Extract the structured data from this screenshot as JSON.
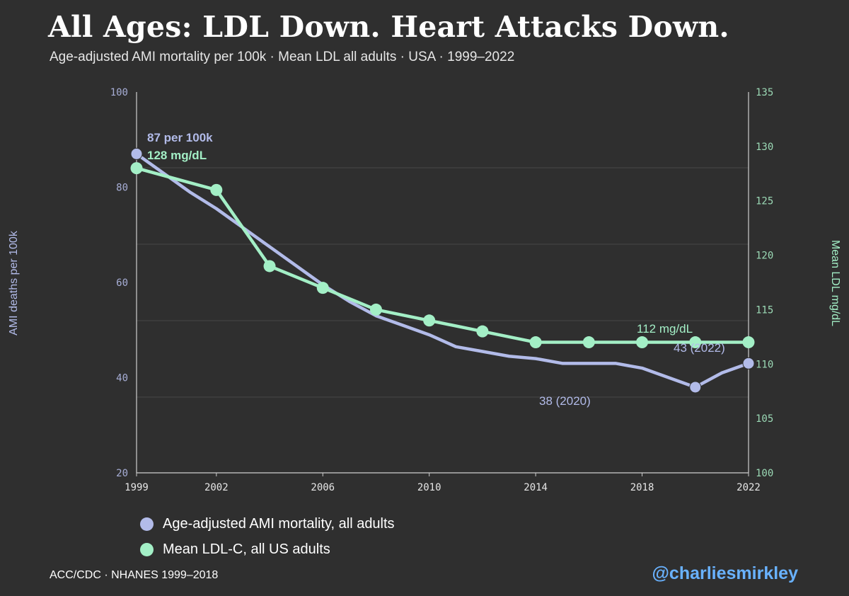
{
  "title": "All Ages: LDL Down. Heart Attacks Down.",
  "subtitle": "Age-adjusted AMI mortality per 100k · Mean LDL all adults · USA · 1999–2022",
  "colors": {
    "background": "#2f2f2f",
    "mortality": "#b2bbe9",
    "ldl": "#a3efc6",
    "grid": "#474747",
    "handle": "#69b2ff"
  },
  "chart_data": {
    "type": "line",
    "title": "All Ages: LDL Down. Heart Attacks Down.",
    "xlabel": "",
    "x_ticks": [
      "1999",
      "2002",
      "2006",
      "2010",
      "2014",
      "2018",
      "2022"
    ],
    "xlim": [
      1999,
      2022
    ],
    "left_axis": {
      "label": "AMI deaths per 100k",
      "ylim": [
        20,
        100
      ],
      "ticks": [
        "20",
        "40",
        "60",
        "80",
        "100"
      ]
    },
    "right_axis": {
      "label": "Mean LDL mg/dL",
      "ylim": [
        100,
        135
      ],
      "ticks": [
        "100",
        "105",
        "110",
        "115",
        "120",
        "125",
        "130",
        "135"
      ]
    },
    "series": [
      {
        "name": "Age-adjusted AMI mortality, all adults",
        "axis": "left",
        "x": [
          1999,
          2000,
          2001,
          2002,
          2003,
          2004,
          2005,
          2006,
          2007,
          2008,
          2009,
          2010,
          2011,
          2012,
          2013,
          2014,
          2015,
          2016,
          2017,
          2018,
          2019,
          2020,
          2021,
          2022
        ],
        "y": [
          87,
          83,
          79,
          75.5,
          71.5,
          67.5,
          63.5,
          59.5,
          56,
          53,
          51,
          49,
          46.5,
          45.5,
          44.5,
          44,
          43,
          43,
          43,
          42,
          40,
          38,
          41,
          43
        ],
        "markers": [
          [
            1999,
            87
          ],
          [
            2020,
            38
          ],
          [
            2022,
            43
          ]
        ]
      },
      {
        "name": "Mean LDL-C, all US adults",
        "axis": "right",
        "x": [
          1999,
          2002,
          2004,
          2006,
          2008,
          2010,
          2012,
          2014,
          2016,
          2018,
          2020,
          2022
        ],
        "y": [
          128,
          126,
          119,
          117,
          115,
          114,
          113,
          112,
          112,
          112,
          112,
          112
        ]
      }
    ],
    "annotations": [
      {
        "text": "87 per 100k",
        "series": "mortality"
      },
      {
        "text": "128 mg/dL",
        "series": "ldl"
      },
      {
        "text": "112 mg/dL",
        "series": "ldl"
      },
      {
        "text": "43 (2022)",
        "series": "mortality"
      },
      {
        "text": "38 (2020)",
        "series": "mortality"
      }
    ]
  },
  "legend": [
    {
      "label": "Age-adjusted AMI mortality, all adults",
      "color": "#b2bbe9"
    },
    {
      "label": "Mean LDL-C, all US adults",
      "color": "#a3efc6"
    }
  ],
  "source": "ACC/CDC · NHANES 1999–2018",
  "handle": "@charliesmirkley"
}
